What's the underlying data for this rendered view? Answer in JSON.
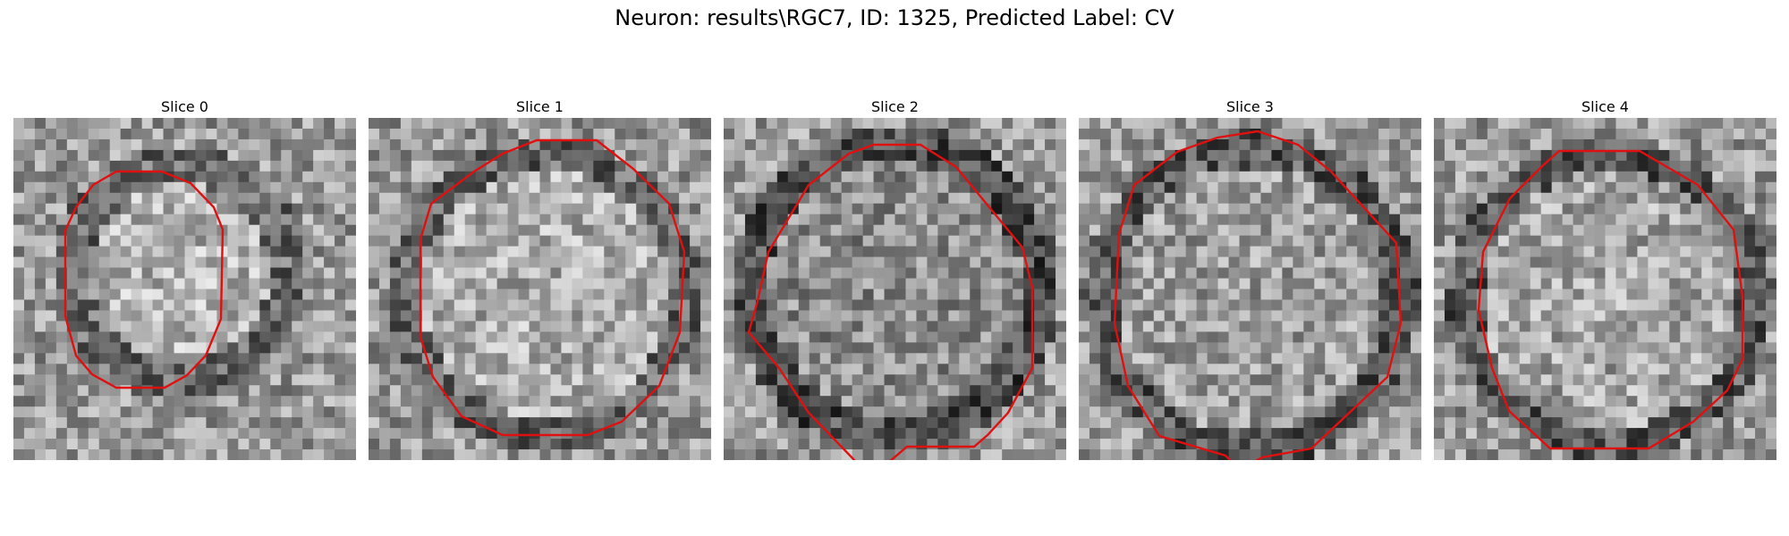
{
  "figure": {
    "title": "Neuron: results\\RGC7, ID: 1325, Predicted Label: CV"
  },
  "slices": [
    {
      "title": "Slice 0"
    },
    {
      "title": "Slice 1"
    },
    {
      "title": "Slice 2"
    },
    {
      "title": "Slice 3"
    },
    {
      "title": "Slice 4"
    }
  ],
  "contour_color": "#e01010"
}
